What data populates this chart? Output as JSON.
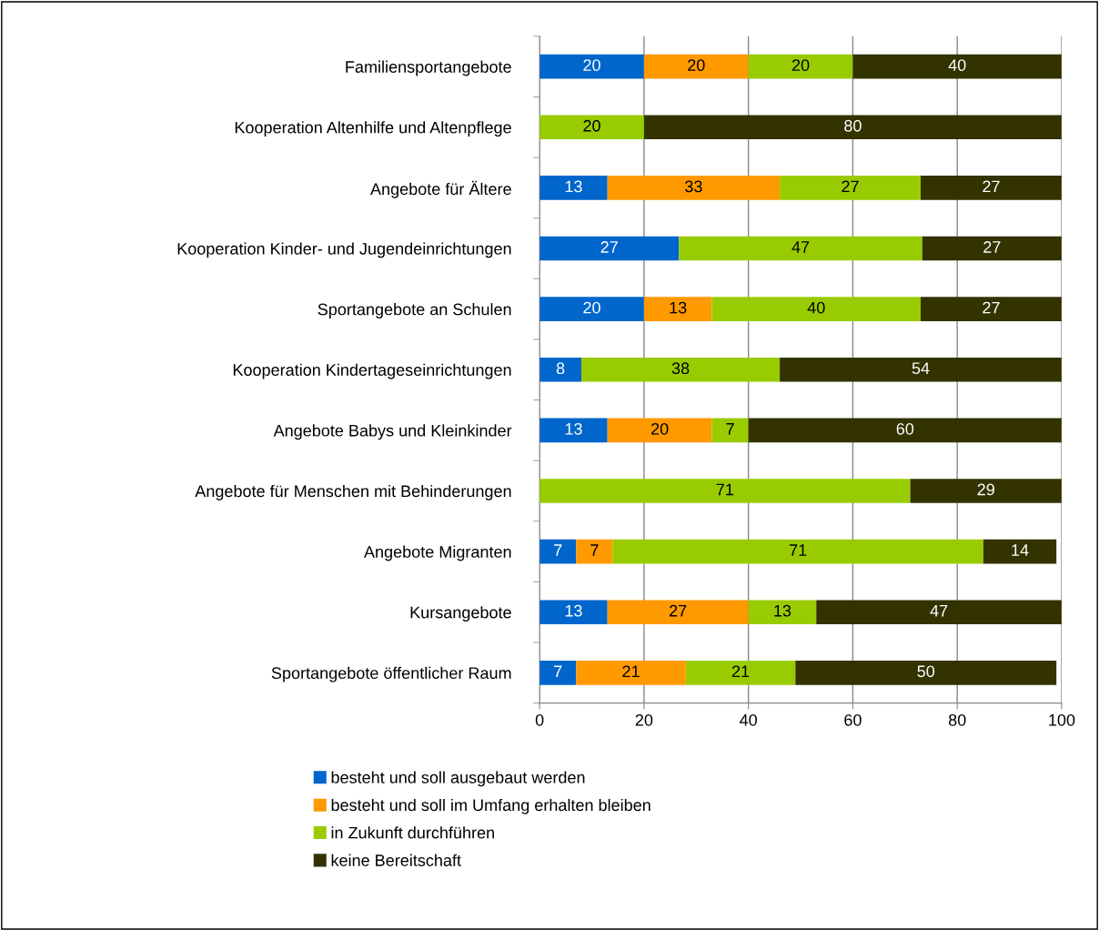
{
  "chart_data": {
    "type": "bar",
    "orientation": "horizontal",
    "stacked": true,
    "categories": [
      "Familiensportangebote",
      "Kooperation Altenhilfe und Altenpflege",
      "Angebote für Ältere",
      "Kooperation Kinder- und Jugendeinrichtungen",
      "Sportangebote an Schulen",
      "Kooperation Kindertageseinrichtungen",
      "Angebote Babys und Kleinkinder",
      "Angebote für Menschen mit Behinderungen",
      "Angebote Migranten",
      "Kursangebote",
      "Sportangebote öffentlicher Raum"
    ],
    "series": [
      {
        "name": "besteht und soll ausgebaut werden",
        "color": "#0066cc",
        "values": [
          20,
          null,
          13,
          26.7,
          20,
          8,
          13,
          null,
          7,
          13,
          7
        ],
        "value_labels": [
          "20",
          null,
          "13",
          "27",
          "20",
          "8",
          "13",
          null,
          "7",
          "13",
          "7"
        ]
      },
      {
        "name": "besteht und soll im Umfang erhalten bleiben",
        "color": "#ff9900",
        "values": [
          20,
          null,
          33,
          null,
          13,
          null,
          20,
          null,
          7,
          27,
          21
        ],
        "value_labels": [
          "20",
          null,
          "33",
          null,
          "13",
          null,
          "20",
          null,
          "7",
          "27",
          "21"
        ]
      },
      {
        "name": "in Zukunft durchführen",
        "color": "#99cc00",
        "values": [
          20,
          20,
          27,
          46.6,
          40,
          38,
          7,
          71,
          71,
          13,
          21
        ],
        "value_labels": [
          "20",
          "20",
          "27",
          "47",
          "40",
          "38",
          "7",
          "71",
          "71",
          "13",
          "21"
        ]
      },
      {
        "name": "keine Bereitschaft",
        "color": "#333300",
        "values": [
          40,
          80,
          27,
          26.7,
          27,
          54,
          60,
          29,
          14,
          47,
          50
        ],
        "value_labels": [
          "40",
          "80",
          "27",
          "27",
          "27",
          "54",
          "60",
          "29",
          "14",
          "47",
          "50"
        ]
      }
    ],
    "xlim": [
      0,
      100
    ],
    "xticks": [
      0,
      20,
      40,
      60,
      80,
      100
    ],
    "grid": "x",
    "legend": "bottom"
  }
}
